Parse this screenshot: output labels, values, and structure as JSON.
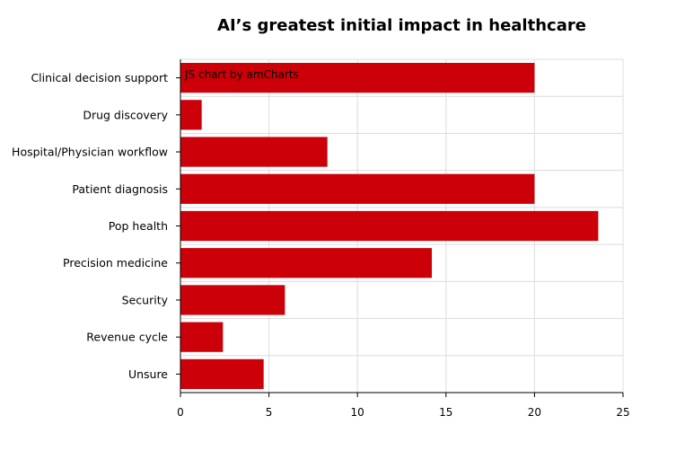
{
  "chart_data": {
    "type": "bar",
    "orientation": "horizontal",
    "title": "AI’s greatest initial impact in healthcare",
    "categories": [
      "Clinical decision support",
      "Drug discovery",
      "Hospital/Physician workflow",
      "Patient diagnosis",
      "Pop health",
      "Precision medicine",
      "Security",
      "Revenue cycle",
      "Unsure"
    ],
    "values": [
      20,
      1.2,
      8.3,
      20,
      23.6,
      14.2,
      5.9,
      2.4,
      4.7
    ],
    "xlim": [
      0,
      25
    ],
    "xticks": [
      "0",
      "5",
      "10",
      "15",
      "20",
      "25"
    ],
    "xlabel": "",
    "ylabel": "",
    "grid": true,
    "bar_color": "#cc0008",
    "credit": "JS chart by amCharts"
  }
}
